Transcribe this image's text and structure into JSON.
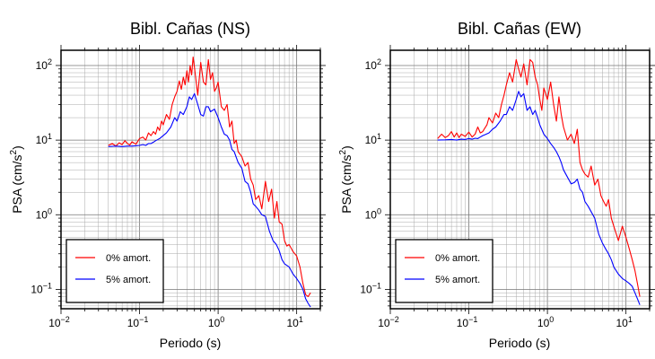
{
  "chart_data": [
    {
      "type": "line",
      "title": "Bibl. Cañas (NS)",
      "xlabel": "Periodo (s)",
      "ylabel_main": "PSA (cm/s",
      "ylabel_sup": "2",
      "ylabel_end": ")",
      "x_scale": "log",
      "y_scale": "log",
      "xlim": [
        0.01,
        20
      ],
      "ylim": [
        0.055,
        160
      ],
      "grid": true,
      "legend_position": "bottom-left",
      "x_ticks": [
        {
          "value": 0.01,
          "base": "10",
          "exp": "−2"
        },
        {
          "value": 0.1,
          "base": "10",
          "exp": "−1"
        },
        {
          "value": 1,
          "base": "10",
          "exp": "0"
        },
        {
          "value": 10,
          "base": "10",
          "exp": "1"
        }
      ],
      "y_ticks": [
        {
          "value": 0.1,
          "base": "10",
          "exp": "−1"
        },
        {
          "value": 1,
          "base": "10",
          "exp": "0"
        },
        {
          "value": 10,
          "base": "10",
          "exp": "1"
        },
        {
          "value": 100,
          "base": "10",
          "exp": "2"
        }
      ],
      "series": [
        {
          "name": "0% amort.",
          "color": "#ff0000",
          "x": [
            0.04,
            0.045,
            0.05,
            0.055,
            0.06,
            0.065,
            0.07,
            0.075,
            0.08,
            0.09,
            0.1,
            0.11,
            0.12,
            0.13,
            0.14,
            0.15,
            0.16,
            0.17,
            0.18,
            0.19,
            0.2,
            0.22,
            0.24,
            0.26,
            0.28,
            0.3,
            0.32,
            0.34,
            0.36,
            0.38,
            0.4,
            0.42,
            0.44,
            0.46,
            0.48,
            0.5,
            0.55,
            0.6,
            0.65,
            0.7,
            0.75,
            0.8,
            0.85,
            0.9,
            0.95,
            1.0,
            1.1,
            1.2,
            1.3,
            1.4,
            1.5,
            1.6,
            1.7,
            1.8,
            2.0,
            2.2,
            2.4,
            2.6,
            2.8,
            3.0,
            3.3,
            3.6,
            4.0,
            4.4,
            4.8,
            5.2,
            5.6,
            6.0,
            6.5,
            7.0,
            7.5,
            8.0,
            9.0,
            10.0,
            11.0,
            12.0,
            13.0,
            14.0,
            15.0
          ],
          "values": [
            8.5,
            9.0,
            8.3,
            9.2,
            8.7,
            9.8,
            9.0,
            8.6,
            9.5,
            8.8,
            10.5,
            11.0,
            10.0,
            12.5,
            11.5,
            13.0,
            12.0,
            15.0,
            13.5,
            18.0,
            16.0,
            22.0,
            19.0,
            30.0,
            38.0,
            45.0,
            62.0,
            48.0,
            70.0,
            55.0,
            85.0,
            60.0,
            100.0,
            75.0,
            130.0,
            95.0,
            40.0,
            110.0,
            60.0,
            55.0,
            120.0,
            65.0,
            80.0,
            45.0,
            50.0,
            60.0,
            28.0,
            25.0,
            30.0,
            15.0,
            18.0,
            9.0,
            10.0,
            7.0,
            6.0,
            4.5,
            5.0,
            3.0,
            2.5,
            1.6,
            1.8,
            1.2,
            2.8,
            1.5,
            2.2,
            0.9,
            1.5,
            0.8,
            0.75,
            0.45,
            0.38,
            0.4,
            0.32,
            0.28,
            0.2,
            0.12,
            0.085,
            0.08,
            0.09
          ]
        },
        {
          "name": "5% amort.",
          "color": "#0000ff",
          "x": [
            0.04,
            0.05,
            0.06,
            0.07,
            0.08,
            0.09,
            0.1,
            0.11,
            0.12,
            0.13,
            0.14,
            0.15,
            0.16,
            0.18,
            0.2,
            0.22,
            0.25,
            0.28,
            0.3,
            0.33,
            0.36,
            0.4,
            0.43,
            0.46,
            0.5,
            0.55,
            0.6,
            0.65,
            0.7,
            0.75,
            0.8,
            0.9,
            1.0,
            1.1,
            1.2,
            1.3,
            1.4,
            1.5,
            1.6,
            1.8,
            2.0,
            2.2,
            2.4,
            2.6,
            2.8,
            3.0,
            3.3,
            3.6,
            4.0,
            4.5,
            5.0,
            5.5,
            6.0,
            6.5,
            7.0,
            8.0,
            9.0,
            10.0,
            11.0,
            12.0,
            13.0,
            14.0,
            15.0
          ],
          "values": [
            8.2,
            8.3,
            8.2,
            8.3,
            8.3,
            8.4,
            8.5,
            8.7,
            8.5,
            9.0,
            9.0,
            9.4,
            9.8,
            10.5,
            11.5,
            12.5,
            15.0,
            20.0,
            18.0,
            24.0,
            22.0,
            28.0,
            38.0,
            35.0,
            42.0,
            30.0,
            22.0,
            21.0,
            28.0,
            28.0,
            24.0,
            26.0,
            20.0,
            15.0,
            12.0,
            11.5,
            10.0,
            7.5,
            7.0,
            5.0,
            4.2,
            2.8,
            2.6,
            2.0,
            1.4,
            1.3,
            1.15,
            1.0,
            0.95,
            0.6,
            0.45,
            0.4,
            0.33,
            0.25,
            0.22,
            0.2,
            0.16,
            0.14,
            0.12,
            0.1,
            0.075,
            0.065,
            0.058
          ]
        }
      ]
    },
    {
      "type": "line",
      "title": "Bibl. Cañas (EW)",
      "xlabel": "Periodo (s)",
      "ylabel_main": "PSA (cm/s",
      "ylabel_sup": "2",
      "ylabel_end": ")",
      "x_scale": "log",
      "y_scale": "log",
      "xlim": [
        0.01,
        20
      ],
      "ylim": [
        0.055,
        160
      ],
      "grid": true,
      "legend_position": "bottom-left",
      "x_ticks": [
        {
          "value": 0.01,
          "base": "10",
          "exp": "−2"
        },
        {
          "value": 0.1,
          "base": "10",
          "exp": "−1"
        },
        {
          "value": 1,
          "base": "10",
          "exp": "0"
        },
        {
          "value": 10,
          "base": "10",
          "exp": "1"
        }
      ],
      "y_ticks": [
        {
          "value": 0.1,
          "base": "10",
          "exp": "−1"
        },
        {
          "value": 1,
          "base": "10",
          "exp": "0"
        },
        {
          "value": 10,
          "base": "10",
          "exp": "1"
        },
        {
          "value": 100,
          "base": "10",
          "exp": "2"
        }
      ],
      "series": [
        {
          "name": "0% amort.",
          "color": "#ff0000",
          "x": [
            0.04,
            0.045,
            0.05,
            0.055,
            0.06,
            0.065,
            0.07,
            0.075,
            0.08,
            0.09,
            0.1,
            0.11,
            0.12,
            0.13,
            0.14,
            0.15,
            0.16,
            0.17,
            0.18,
            0.2,
            0.22,
            0.24,
            0.26,
            0.28,
            0.3,
            0.33,
            0.36,
            0.4,
            0.43,
            0.46,
            0.5,
            0.55,
            0.6,
            0.65,
            0.7,
            0.75,
            0.8,
            0.85,
            0.9,
            1.0,
            1.1,
            1.2,
            1.3,
            1.4,
            1.5,
            1.6,
            1.8,
            2.0,
            2.2,
            2.4,
            2.6,
            2.8,
            3.0,
            3.3,
            3.6,
            4.0,
            4.4,
            4.8,
            5.2,
            5.6,
            6.0,
            6.5,
            7.0,
            8.0,
            9.0,
            10.0,
            11.0,
            12.0,
            13.0,
            14.0,
            15.0
          ],
          "values": [
            10.5,
            12.0,
            10.8,
            11.5,
            13.0,
            11.0,
            12.5,
            10.8,
            12.0,
            11.2,
            12.8,
            11.0,
            12.0,
            15.0,
            12.5,
            13.0,
            14.5,
            16.0,
            20.0,
            17.0,
            23.0,
            20.0,
            30.0,
            40.0,
            55.0,
            80.0,
            60.0,
            120.0,
            90.0,
            70.0,
            105.0,
            55.0,
            120.0,
            110.0,
            70.0,
            55.0,
            35.0,
            25.0,
            50.0,
            35.0,
            60.0,
            30.0,
            18.0,
            38.0,
            22.0,
            15.0,
            10.0,
            12.0,
            9.0,
            14.0,
            5.0,
            4.0,
            3.5,
            3.2,
            4.5,
            2.5,
            3.0,
            1.8,
            1.5,
            1.3,
            1.6,
            0.9,
            0.7,
            0.45,
            0.7,
            0.5,
            0.35,
            0.25,
            0.18,
            0.12,
            0.08
          ]
        },
        {
          "name": "5% amort.",
          "color": "#0000ff",
          "x": [
            0.04,
            0.05,
            0.06,
            0.07,
            0.08,
            0.09,
            0.1,
            0.11,
            0.12,
            0.13,
            0.14,
            0.15,
            0.16,
            0.18,
            0.2,
            0.22,
            0.25,
            0.28,
            0.3,
            0.33,
            0.36,
            0.4,
            0.43,
            0.46,
            0.5,
            0.55,
            0.6,
            0.65,
            0.7,
            0.75,
            0.8,
            0.9,
            1.0,
            1.1,
            1.2,
            1.3,
            1.4,
            1.5,
            1.6,
            1.8,
            2.0,
            2.2,
            2.4,
            2.6,
            2.8,
            3.0,
            3.3,
            3.6,
            4.0,
            4.5,
            5.0,
            5.5,
            6.0,
            6.5,
            7.0,
            8.0,
            9.0,
            10.0,
            11.0,
            12.0,
            13.0,
            14.0,
            15.0
          ],
          "values": [
            10.0,
            10.1,
            10.2,
            10.0,
            10.3,
            10.2,
            10.5,
            10.3,
            10.6,
            10.5,
            11.0,
            11.5,
            11.8,
            12.5,
            14.0,
            15.0,
            18.0,
            22.0,
            22.0,
            28.0,
            25.0,
            35.0,
            45.0,
            38.0,
            42.0,
            25.0,
            28.0,
            22.0,
            25.0,
            20.0,
            16.0,
            12.0,
            10.5,
            9.0,
            8.0,
            7.0,
            6.0,
            5.0,
            4.0,
            3.2,
            2.6,
            2.7,
            3.0,
            2.2,
            2.0,
            1.5,
            1.3,
            1.1,
            0.9,
            0.55,
            0.42,
            0.35,
            0.3,
            0.25,
            0.2,
            0.16,
            0.14,
            0.13,
            0.12,
            0.11,
            0.09,
            0.075,
            0.062
          ]
        }
      ]
    }
  ]
}
